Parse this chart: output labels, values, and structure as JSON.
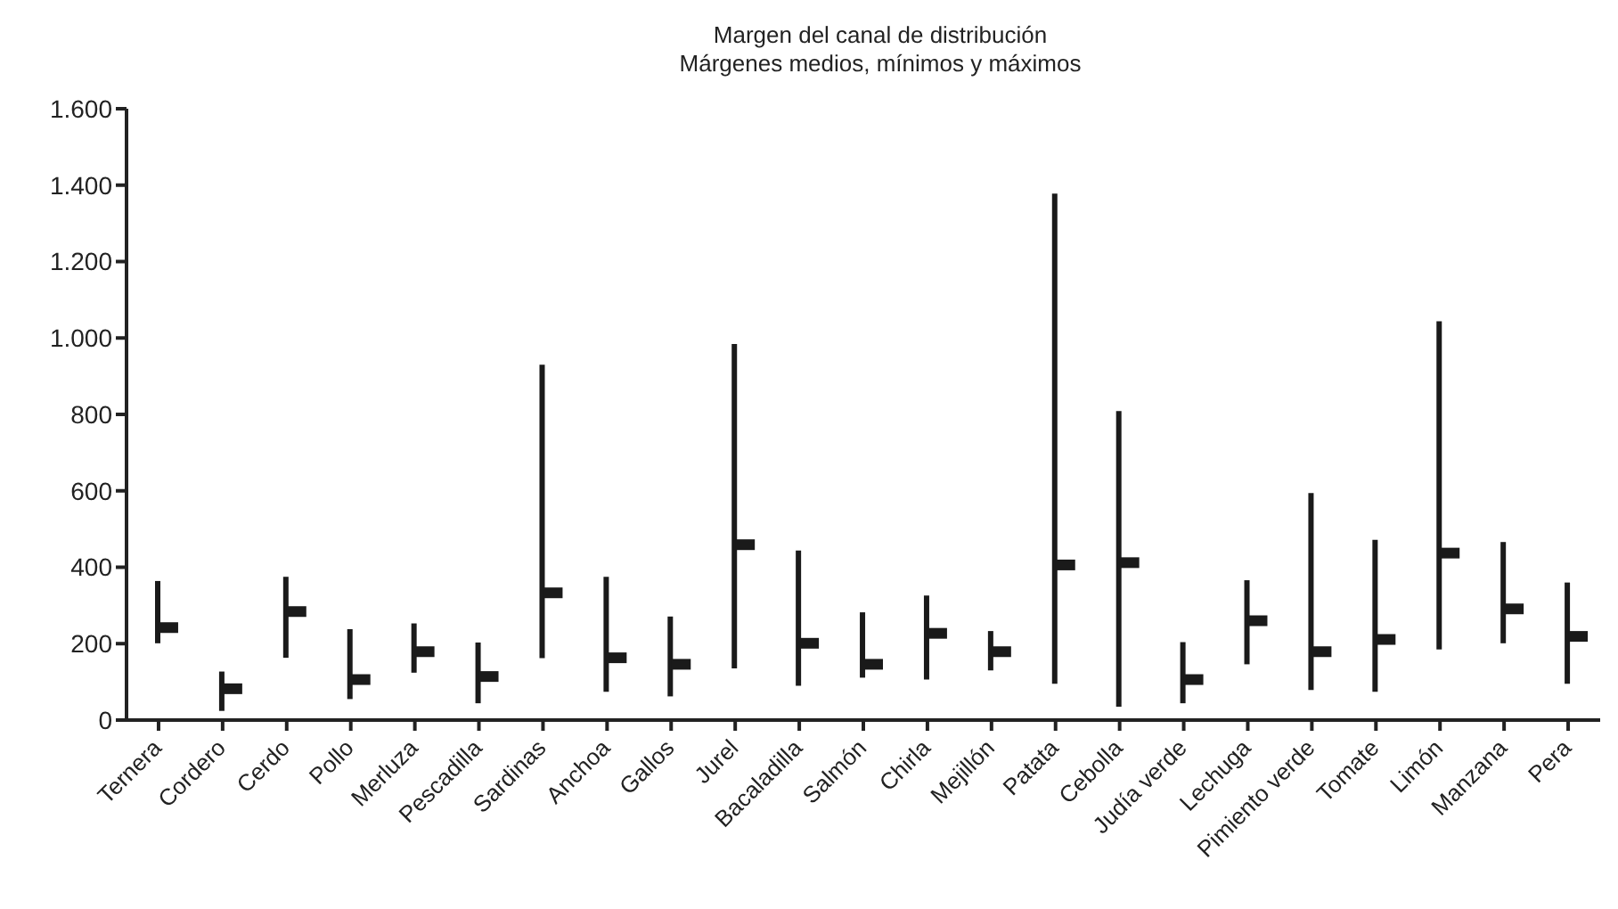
{
  "chart_data": {
    "type": "bar",
    "title": "Margen del canal de distribución",
    "subtitle": "Márgenes medios, mínimos y máximos",
    "categories": [
      "Ternera",
      "Cordero",
      "Cerdo",
      "Pollo",
      "Merluza",
      "Pescadilla",
      "Sardinas",
      "Anchoa",
      "Gallos",
      "Jurel",
      "Bacaladilla",
      "Salmón",
      "Chirla",
      "Mejillón",
      "Patata",
      "Cebolla",
      "Judía verde",
      "Lechuga",
      "Pimiento verde",
      "Tomate",
      "Limón",
      "Manzana",
      "Pera"
    ],
    "series": [
      {
        "color": "#1a1a1a",
        "base": [
          201,
          24,
          163,
          55,
          124,
          44,
          162,
          74,
          62,
          135,
          90,
          111,
          106,
          130,
          95,
          35,
          44,
          146,
          79,
          74,
          185,
          201,
          95
        ],
        "values": [
          163,
          103,
          212,
          183,
          129,
          159,
          768,
          301,
          209,
          849,
          354,
          171,
          220,
          103,
          1283,
          774,
          160,
          220,
          515,
          398,
          859,
          265,
          265
        ]
      },
      {
        "type": "scatter",
        "color": "#1a1a1a",
        "marker": "square",
        "x": [
          "Ternera",
          "Cordero",
          "Cerdo",
          "Pollo",
          "Merluza",
          "Pescadilla",
          "Sardinas",
          "Anchoa",
          "Gallos",
          "Jurel",
          "Bacaladilla",
          "Salmón",
          "Chirla",
          "Mejillón",
          "Patata",
          "Cebolla",
          "Judía verde",
          "Lechuga",
          "Pimiento verde",
          "Tomate",
          "Limón",
          "Manzana",
          "Pera"
        ],
        "values": [
          242,
          82,
          284,
          106,
          179,
          114,
          333,
          163,
          146,
          459,
          201,
          146,
          227,
          179,
          406,
          412,
          106,
          260,
          179,
          211,
          437,
          291,
          219
        ]
      }
    ],
    "ylim": [
      0,
      1600
    ],
    "yticks": [
      0,
      200,
      400,
      600,
      800,
      {
        "value": 1000,
        "label": "1.000"
      },
      {
        "value": 1200,
        "label": "1.200"
      },
      {
        "value": 1400,
        "label": "1.400"
      },
      {
        "value": 1600,
        "label": "1.600"
      }
    ]
  }
}
